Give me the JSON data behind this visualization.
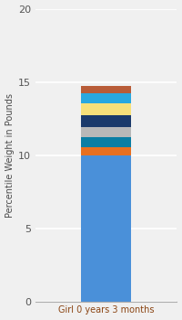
{
  "categories": [
    "Girl 0 years 3 months"
  ],
  "segments": [
    {
      "value": 10.0,
      "color": "#4A90D9"
    },
    {
      "value": 0.55,
      "color": "#E87020"
    },
    {
      "value": 0.65,
      "color": "#0A7EA4"
    },
    {
      "value": 0.7,
      "color": "#B8B8B8"
    },
    {
      "value": 0.85,
      "color": "#1B3A6B"
    },
    {
      "value": 0.8,
      "color": "#F7E07A"
    },
    {
      "value": 0.65,
      "color": "#29A8E0"
    },
    {
      "value": 0.5,
      "color": "#B85C38"
    }
  ],
  "ylabel": "Percentile Weight in Pounds",
  "ylim": [
    0,
    20
  ],
  "yticks": [
    0,
    5,
    10,
    15,
    20
  ],
  "bg_color": "#F0F0F0",
  "bar_width": 0.35,
  "figsize": [
    2.0,
    3.5
  ],
  "dpi": 100
}
